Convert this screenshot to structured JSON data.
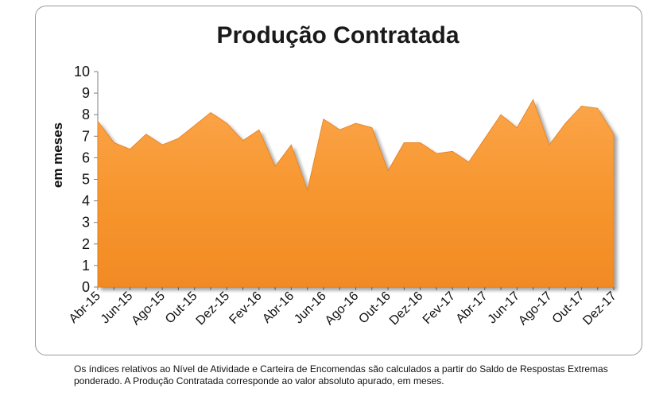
{
  "chart_data": {
    "type": "area",
    "title": "Produção Contratada",
    "xlabel": "",
    "ylabel": "em meses",
    "ylim": [
      0,
      10
    ],
    "yticks": [
      0,
      1,
      2,
      3,
      4,
      5,
      6,
      7,
      8,
      9,
      10
    ],
    "x": [
      "Abr-15",
      "Mai-15",
      "Jun-15",
      "Jul-15",
      "Ago-15",
      "Set-15",
      "Out-15",
      "Nov-15",
      "Dez-15",
      "Jan-16",
      "Fev-16",
      "Mar-16",
      "Abr-16",
      "Mai-16",
      "Jun-16",
      "Jul-16",
      "Ago-16",
      "Set-16",
      "Out-16",
      "Nov-16",
      "Dez-16",
      "Jan-17",
      "Fev-17",
      "Mar-17",
      "Abr-17",
      "Mai-17",
      "Jun-17",
      "Jul-17",
      "Ago-17",
      "Set-17",
      "Out-17",
      "Nov-17",
      "Dez-17"
    ],
    "xticklabels": [
      "Abr-15",
      "Jun-15",
      "Ago-15",
      "Out-15",
      "Dez-15",
      "Fev-16",
      "Abr-16",
      "Jun-16",
      "Ago-16",
      "Out-16",
      "Dez-16",
      "Fev-17",
      "Abr-17",
      "Jun-17",
      "Ago-17",
      "Out-17",
      "Dez-17"
    ],
    "values": [
      7.7,
      6.7,
      6.4,
      7.1,
      6.6,
      6.9,
      7.5,
      8.1,
      7.6,
      6.8,
      7.3,
      5.6,
      6.6,
      4.5,
      7.8,
      7.3,
      7.6,
      7.4,
      5.4,
      6.7,
      6.7,
      6.2,
      6.3,
      5.8,
      6.9,
      8.0,
      7.4,
      8.7,
      6.6,
      7.6,
      8.4,
      8.3,
      7.1
    ],
    "color": "#F7952E"
  },
  "footnote": "Os índices relativos ao Nível de Atividade e Carteira de Encomendas são calculados a partir do Saldo de Respostas Extremas ponderado. A Produção Contratada corresponde ao valor absoluto apurado, em meses."
}
